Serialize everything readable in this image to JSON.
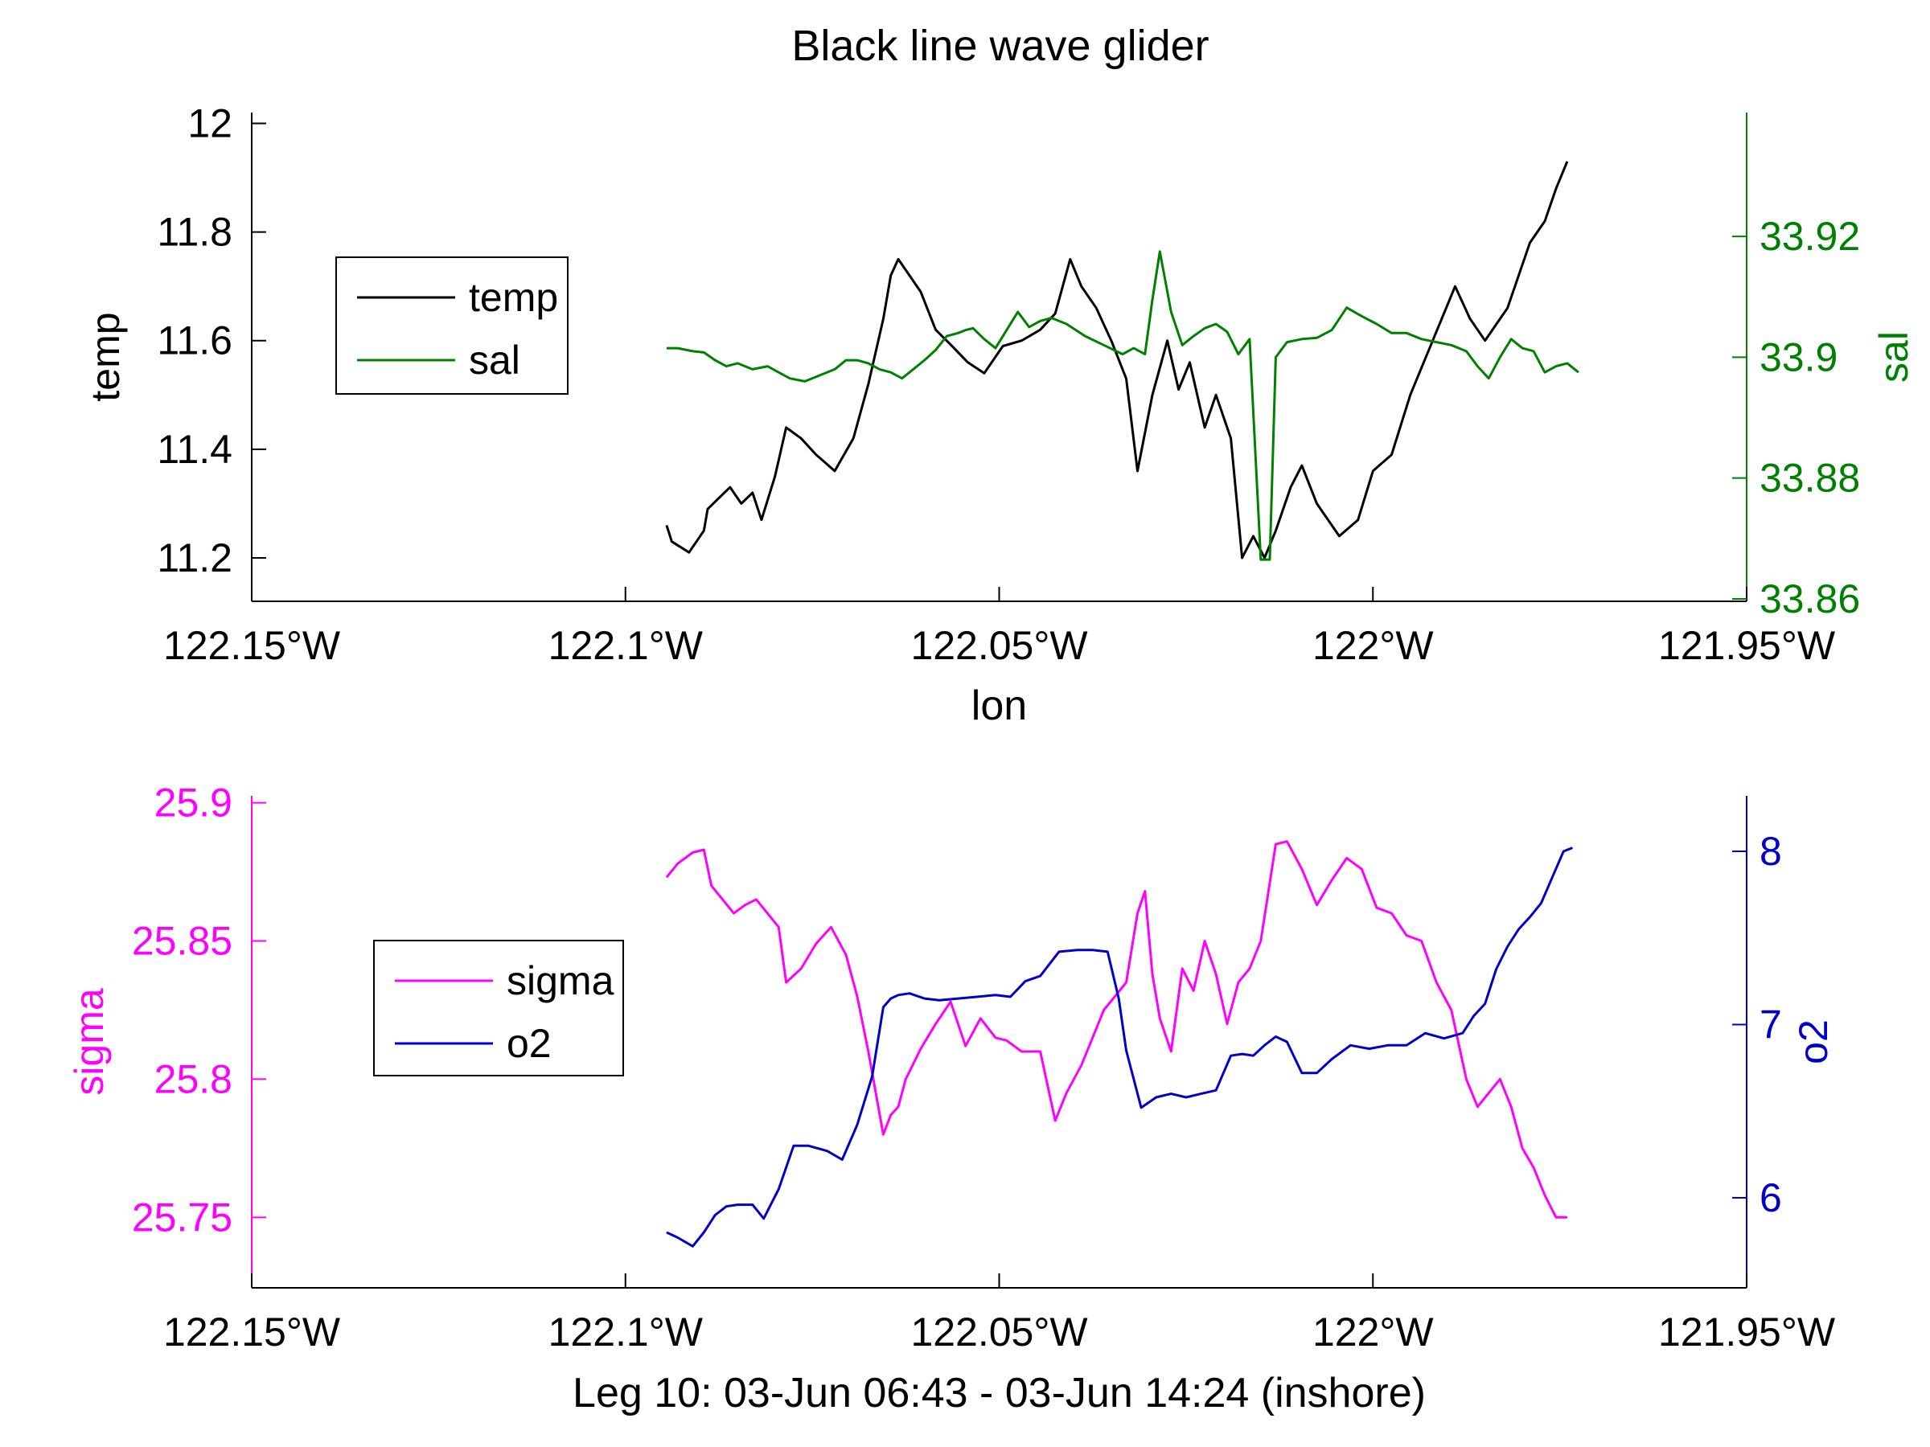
{
  "figure": {
    "title": "Black line wave glider",
    "footer": "Leg 10: 03-Jun 06:43 - 03-Jun 14:24 (inshore)"
  },
  "chart_data": [
    {
      "type": "line",
      "xlabel": "lon",
      "x_ticks": [
        -122.15,
        -122.1,
        -122.05,
        -122.0,
        -121.95
      ],
      "x_tick_labels": [
        "122.15°W",
        "122.1°W",
        "122.05°W",
        "122°W",
        "121.95°W"
      ],
      "xlim": [
        -122.15,
        -121.95
      ],
      "left_axis": {
        "label": "temp",
        "ylim": [
          11.12,
          12.02
        ],
        "ticks": [
          11.2,
          11.4,
          11.6,
          11.8,
          12
        ],
        "tick_labels": [
          "11.2",
          "11.4",
          "11.6",
          "11.8",
          "12"
        ],
        "color": "#000000"
      },
      "right_axis": {
        "label": "sal",
        "ylim": [
          33.8596,
          33.9405
        ],
        "ticks": [
          33.86,
          33.88,
          33.9,
          33.92
        ],
        "tick_labels": [
          "33.86",
          "33.88",
          "33.9",
          "33.92"
        ],
        "color": "#008000"
      },
      "legend": {
        "placement": "upper-left",
        "entries": [
          "temp",
          "sal"
        ]
      },
      "series": [
        {
          "name": "temp",
          "axis": "left",
          "color": "#000000",
          "x": [
            -122.0945,
            -122.0938,
            -122.0915,
            -122.0895,
            -122.089,
            -122.0875,
            -122.086,
            -122.0845,
            -122.083,
            -122.0818,
            -122.08,
            -122.0785,
            -122.0765,
            -122.0745,
            -122.072,
            -122.0695,
            -122.0675,
            -122.0655,
            -122.0645,
            -122.0635,
            -122.0625,
            -122.0605,
            -122.0585,
            -122.0563,
            -122.0542,
            -122.052,
            -122.0495,
            -122.047,
            -122.0445,
            -122.0425,
            -122.0405,
            -122.039,
            -122.037,
            -122.035,
            -122.033,
            -122.0315,
            -122.0295,
            -122.0275,
            -122.026,
            -122.0245,
            -122.0225,
            -122.021,
            -122.019,
            -122.0175,
            -122.016,
            -122.0145,
            -122.013,
            -122.011,
            -122.0095,
            -122.0075,
            -122.0045,
            -122.002,
            -122.0,
            -121.9975,
            -121.995,
            -121.992,
            -121.989,
            -121.987,
            -121.985,
            -121.9835,
            -121.982,
            -121.9805,
            -121.979,
            -121.977,
            -121.9755,
            -121.974
          ],
          "y": [
            11.26,
            11.23,
            11.21,
            11.25,
            11.29,
            11.31,
            11.33,
            11.3,
            11.32,
            11.27,
            11.35,
            11.44,
            11.42,
            11.39,
            11.36,
            11.42,
            11.52,
            11.64,
            11.72,
            11.75,
            11.73,
            11.69,
            11.62,
            11.59,
            11.56,
            11.54,
            11.59,
            11.6,
            11.62,
            11.65,
            11.75,
            11.7,
            11.66,
            11.6,
            11.53,
            11.36,
            11.5,
            11.6,
            11.51,
            11.56,
            11.44,
            11.5,
            11.42,
            11.2,
            11.24,
            11.2,
            11.25,
            11.33,
            11.37,
            11.3,
            11.24,
            11.27,
            11.36,
            11.39,
            11.5,
            11.6,
            11.7,
            11.64,
            11.6,
            11.63,
            11.66,
            11.72,
            11.78,
            11.82,
            11.88,
            11.93
          ]
        },
        {
          "name": "sal",
          "axis": "right",
          "color": "#008000",
          "x": [
            -122.0945,
            -122.093,
            -122.091,
            -122.0895,
            -122.088,
            -122.0865,
            -122.085,
            -122.083,
            -122.081,
            -122.0795,
            -122.078,
            -122.076,
            -122.074,
            -122.072,
            -122.0705,
            -122.069,
            -122.0675,
            -122.066,
            -122.0645,
            -122.063,
            -122.0615,
            -122.06,
            -122.0585,
            -122.057,
            -122.0555,
            -122.0545,
            -122.0535,
            -122.052,
            -122.0505,
            -122.049,
            -122.0475,
            -122.046,
            -122.0445,
            -122.043,
            -122.041,
            -122.0385,
            -122.036,
            -122.0335,
            -122.032,
            -122.0305,
            -122.0295,
            -122.0285,
            -122.027,
            -122.0255,
            -122.024,
            -122.0225,
            -122.021,
            -122.0195,
            -122.018,
            -122.0165,
            -122.015,
            -122.0138,
            -122.013,
            -122.0115,
            -122.0095,
            -122.0075,
            -122.0055,
            -122.0035,
            -122.0015,
            -121.9995,
            -121.9975,
            -121.9955,
            -121.9935,
            -121.9915,
            -121.9895,
            -121.9875,
            -121.986,
            -121.9845,
            -121.983,
            -121.9815,
            -121.98,
            -121.9785,
            -121.977,
            -121.9755,
            -121.974,
            -121.9725
          ],
          "y": [
            33.9015,
            33.9015,
            33.901,
            33.9008,
            33.8995,
            33.8985,
            33.899,
            33.898,
            33.8985,
            33.8975,
            33.8965,
            33.896,
            33.897,
            33.898,
            33.8995,
            33.8995,
            33.899,
            33.898,
            33.8975,
            33.8965,
            33.898,
            33.8995,
            33.9012,
            33.9035,
            33.904,
            33.9045,
            33.9048,
            33.903,
            33.9015,
            33.9045,
            33.9075,
            33.905,
            33.906,
            33.9065,
            33.9055,
            33.9035,
            33.902,
            33.9005,
            33.9015,
            33.9005,
            33.9095,
            33.9175,
            33.9075,
            33.902,
            33.9035,
            33.9048,
            33.9055,
            33.9042,
            33.9005,
            33.903,
            33.8665,
            33.8665,
            33.9,
            33.9025,
            33.903,
            33.9032,
            33.9045,
            33.9082,
            33.9068,
            33.9055,
            33.904,
            33.904,
            33.903,
            33.9025,
            33.902,
            33.901,
            33.8985,
            33.8965,
            33.9,
            33.903,
            33.9015,
            33.901,
            33.8975,
            33.8985,
            33.899,
            33.8975
          ]
        }
      ]
    },
    {
      "type": "line",
      "xlabel": "Leg 10: 03-Jun 06:43 - 03-Jun 14:24 (inshore)",
      "x_ticks": [
        -122.15,
        -122.1,
        -122.05,
        -122.0,
        -121.95
      ],
      "x_tick_labels": [
        "122.15°W",
        "122.1°W",
        "122.05°W",
        "122°W",
        "121.95°W"
      ],
      "xlim": [
        -122.15,
        -121.95
      ],
      "left_axis": {
        "label": "sigma",
        "ylim": [
          25.7245,
          25.9025
        ],
        "ticks": [
          25.75,
          25.8,
          25.85,
          25.9
        ],
        "tick_labels": [
          "25.75",
          "25.8",
          "25.85",
          "25.9"
        ],
        "color": "#ff00ff"
      },
      "right_axis": {
        "label": "o2",
        "ylim": [
          5.48,
          8.32
        ],
        "ticks": [
          6,
          7,
          8
        ],
        "tick_labels": [
          "6",
          "7",
          "8"
        ],
        "color": "#0000cc"
      },
      "legend": {
        "placement": "upper-left",
        "entries": [
          "sigma",
          "o2"
        ]
      },
      "series": [
        {
          "name": "sigma",
          "axis": "left",
          "color": "#ff00ff",
          "x": [
            -122.0945,
            -122.093,
            -122.091,
            -122.0895,
            -122.0885,
            -122.087,
            -122.0855,
            -122.084,
            -122.0825,
            -122.081,
            -122.0795,
            -122.0785,
            -122.0765,
            -122.0745,
            -122.0725,
            -122.0705,
            -122.069,
            -122.0675,
            -122.0655,
            -122.0645,
            -122.0635,
            -122.0625,
            -122.0605,
            -122.0585,
            -122.0565,
            -122.0545,
            -122.0525,
            -122.0505,
            -122.049,
            -122.047,
            -122.0445,
            -122.0425,
            -122.041,
            -122.039,
            -122.0375,
            -122.036,
            -122.0345,
            -122.033,
            -122.0315,
            -122.0305,
            -122.0295,
            -122.0285,
            -122.027,
            -122.0255,
            -122.024,
            -122.0225,
            -122.021,
            -122.0195,
            -122.018,
            -122.0165,
            -122.015,
            -122.013,
            -122.0115,
            -122.0095,
            -122.0075,
            -122.0055,
            -122.0035,
            -122.0015,
            -121.9995,
            -121.9975,
            -121.9955,
            -121.9935,
            -121.9915,
            -121.9895,
            -121.9875,
            -121.986,
            -121.9845,
            -121.983,
            -121.9815,
            -121.98,
            -121.9785,
            -121.977,
            -121.9755,
            -121.974
          ],
          "y": [
            25.873,
            25.878,
            25.882,
            25.883,
            25.87,
            25.865,
            25.86,
            25.863,
            25.865,
            25.86,
            25.855,
            25.835,
            25.84,
            25.849,
            25.855,
            25.845,
            25.83,
            25.81,
            25.78,
            25.787,
            25.79,
            25.8,
            25.811,
            25.82,
            25.828,
            25.812,
            25.822,
            25.815,
            25.814,
            25.81,
            25.81,
            25.785,
            25.795,
            25.805,
            25.815,
            25.825,
            25.83,
            25.835,
            25.86,
            25.868,
            25.838,
            25.822,
            25.81,
            25.84,
            25.832,
            25.85,
            25.838,
            25.82,
            25.835,
            25.84,
            25.85,
            25.885,
            25.886,
            25.876,
            25.863,
            25.872,
            25.88,
            25.876,
            25.862,
            25.86,
            25.852,
            25.85,
            25.835,
            25.825,
            25.8,
            25.79,
            25.795,
            25.8,
            25.79,
            25.775,
            25.768,
            25.758,
            25.75,
            25.75
          ]
        },
        {
          "name": "o2",
          "axis": "right",
          "color": "#0000cc",
          "x": [
            -122.0945,
            -122.093,
            -122.091,
            -122.0895,
            -122.088,
            -122.0865,
            -122.085,
            -122.083,
            -122.0815,
            -122.0795,
            -122.0775,
            -122.0755,
            -122.073,
            -122.071,
            -122.069,
            -122.067,
            -122.0655,
            -122.0645,
            -122.0635,
            -122.062,
            -122.06,
            -122.058,
            -122.0555,
            -122.053,
            -122.0505,
            -122.0485,
            -122.0465,
            -122.0445,
            -122.042,
            -122.0395,
            -122.0375,
            -122.0355,
            -122.034,
            -122.033,
            -122.031,
            -122.029,
            -122.027,
            -122.025,
            -122.023,
            -122.021,
            -122.019,
            -122.0175,
            -122.016,
            -122.0145,
            -122.013,
            -122.0115,
            -122.0095,
            -122.0075,
            -122.0055,
            -122.003,
            -122.0005,
            -121.998,
            -121.9955,
            -121.993,
            -121.9905,
            -121.988,
            -121.9865,
            -121.985,
            -121.9835,
            -121.982,
            -121.9805,
            -121.979,
            -121.9775,
            -121.976,
            -121.9745,
            -121.9733
          ],
          "y": [
            5.8,
            5.77,
            5.72,
            5.8,
            5.9,
            5.95,
            5.96,
            5.96,
            5.88,
            6.05,
            6.3,
            6.3,
            6.27,
            6.22,
            6.42,
            6.7,
            7.1,
            7.15,
            7.17,
            7.18,
            7.15,
            7.14,
            7.15,
            7.16,
            7.17,
            7.16,
            7.25,
            7.28,
            7.42,
            7.43,
            7.43,
            7.42,
            7.15,
            6.85,
            6.52,
            6.58,
            6.6,
            6.58,
            6.6,
            6.62,
            6.82,
            6.83,
            6.82,
            6.88,
            6.93,
            6.9,
            6.72,
            6.72,
            6.8,
            6.88,
            6.86,
            6.88,
            6.88,
            6.95,
            6.92,
            6.95,
            7.05,
            7.12,
            7.32,
            7.45,
            7.55,
            7.62,
            7.7,
            7.85,
            8.0,
            8.02
          ]
        }
      ]
    }
  ]
}
